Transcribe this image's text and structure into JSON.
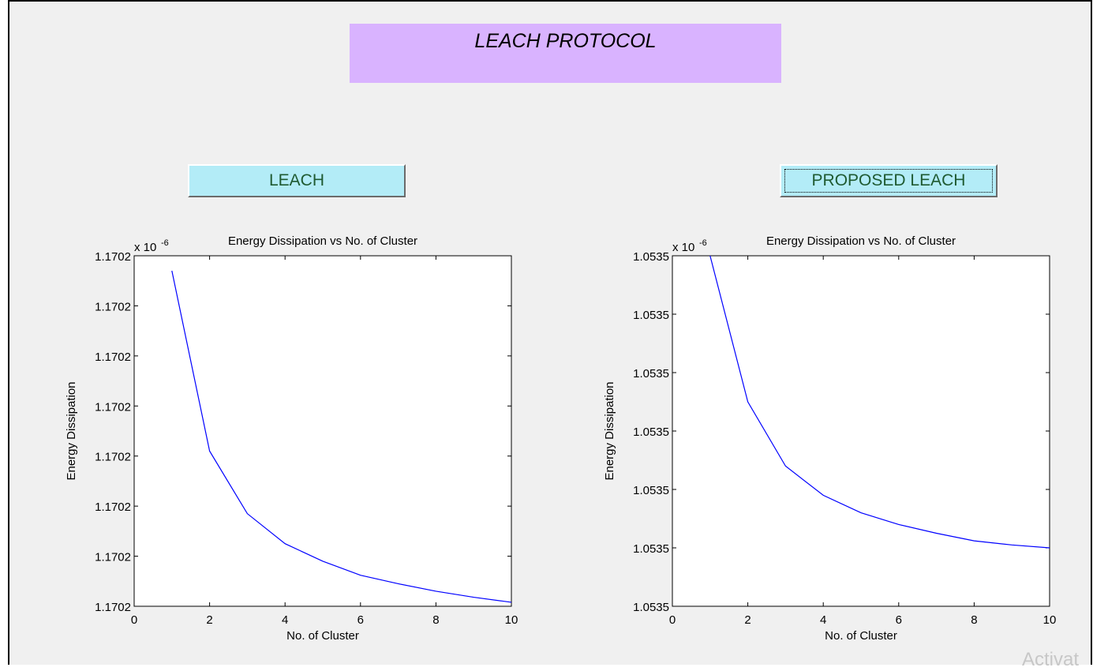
{
  "window": {
    "title": "LEACH PROTOCOL",
    "watermark": "Activat"
  },
  "buttons": {
    "leach_label": "LEACH",
    "proposed_label": "PROPOSED LEACH"
  },
  "colors": {
    "title_bg": "#d9b3ff",
    "button_bg": "#b3ecf7",
    "button_text": "#1f5a31",
    "line": "#0000ff"
  },
  "chart_data": [
    {
      "type": "line",
      "title": "Energy Dissipation vs No. of Cluster",
      "xlabel": "No. of Cluster",
      "ylabel": "Energy Dissipation",
      "y_exponent_label": "x 10",
      "y_exponent": "-6",
      "xlim": [
        0,
        10
      ],
      "xticks": [
        0,
        2,
        4,
        6,
        8,
        10
      ],
      "yticks": [
        0,
        1,
        2,
        3,
        4,
        5,
        6,
        7
      ],
      "ytick_labels": [
        "1.1702",
        "1.1702",
        "1.1702",
        "1.1702",
        "1.1702",
        "1.1702",
        "1.1702",
        "1.1702"
      ],
      "ylim": [
        0,
        7
      ],
      "grid": false,
      "series": [
        {
          "x": [
            1,
            2,
            3,
            4,
            5,
            6,
            7,
            8,
            9,
            10
          ],
          "y": [
            6.7,
            3.1,
            1.85,
            1.25,
            0.9,
            0.62,
            0.45,
            0.3,
            0.18,
            0.08
          ]
        }
      ]
    },
    {
      "type": "line",
      "title": "Energy Dissipation vs No. of Cluster",
      "xlabel": "No. of Cluster",
      "ylabel": "Energy Dissipation",
      "y_exponent_label": "x 10",
      "y_exponent": "-6",
      "xlim": [
        0,
        10
      ],
      "xticks": [
        0,
        2,
        4,
        6,
        8,
        10
      ],
      "yticks": [
        0,
        1,
        2,
        3,
        4,
        5,
        6
      ],
      "ytick_labels": [
        "1.0535",
        "1.0535",
        "1.0535",
        "1.0535",
        "1.0535",
        "1.0535",
        "1.0535"
      ],
      "ylim": [
        0,
        6
      ],
      "grid": false,
      "series": [
        {
          "x": [
            1,
            2,
            3,
            4,
            5,
            6,
            7,
            8,
            9,
            10
          ],
          "y": [
            6.0,
            3.5,
            2.4,
            1.9,
            1.6,
            1.4,
            1.25,
            1.12,
            1.05,
            1.0
          ]
        }
      ]
    }
  ]
}
